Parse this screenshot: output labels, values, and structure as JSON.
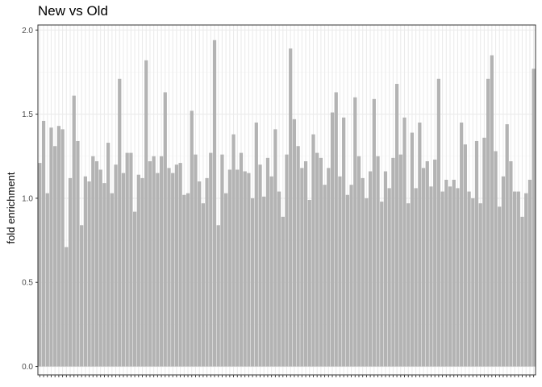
{
  "chart_data": {
    "type": "bar",
    "title": "New vs Old",
    "xlabel": "",
    "ylabel": "fold enrichment",
    "ylim": [
      -0.05,
      2.03
    ],
    "yticks": [
      0.0,
      0.5,
      1.0,
      1.5,
      2.0
    ],
    "ytick_labels": [
      "0.0",
      "0.5",
      "1.0",
      "1.5",
      "2.0"
    ],
    "x_tick_labels_visible": false,
    "grid": true,
    "legend": "none",
    "colors": {
      "bar": "#b3b3b3",
      "panel_border": "#333333",
      "grid_major": "#ebebeb",
      "grid_minor": "#f4f4f4"
    },
    "values": [
      1.21,
      1.46,
      1.03,
      1.42,
      1.31,
      1.43,
      1.41,
      0.71,
      1.12,
      1.61,
      1.34,
      0.84,
      1.13,
      1.1,
      1.25,
      1.22,
      1.17,
      1.09,
      1.33,
      1.03,
      1.2,
      1.71,
      1.15,
      1.27,
      1.27,
      0.92,
      1.14,
      1.12,
      1.82,
      1.22,
      1.25,
      1.15,
      1.25,
      1.63,
      1.18,
      1.15,
      1.2,
      1.21,
      1.02,
      1.03,
      1.52,
      1.26,
      1.1,
      0.97,
      1.12,
      1.27,
      1.94,
      0.84,
      1.26,
      1.03,
      1.17,
      1.38,
      1.17,
      1.27,
      1.16,
      1.15,
      1.0,
      1.45,
      1.2,
      1.01,
      1.24,
      1.13,
      1.41,
      1.04,
      0.89,
      1.26,
      1.89,
      1.47,
      1.31,
      1.18,
      1.22,
      0.99,
      1.38,
      1.27,
      1.24,
      1.08,
      1.18,
      1.51,
      1.63,
      1.13,
      1.48,
      1.02,
      1.08,
      1.6,
      1.25,
      1.12,
      1.0,
      1.16,
      1.59,
      1.25,
      0.98,
      1.16,
      1.06,
      1.24,
      1.68,
      1.26,
      1.48,
      0.97,
      1.39,
      1.06,
      1.45,
      1.18,
      1.22,
      1.07,
      1.23,
      1.71,
      1.04,
      1.11,
      1.07,
      1.11,
      1.06,
      1.45,
      1.32,
      1.04,
      1.0,
      1.34,
      0.97,
      1.36,
      1.71,
      1.85,
      1.28,
      0.95,
      1.13,
      1.44,
      1.22,
      1.04,
      1.04,
      0.89,
      1.03,
      1.11,
      1.77
    ]
  }
}
